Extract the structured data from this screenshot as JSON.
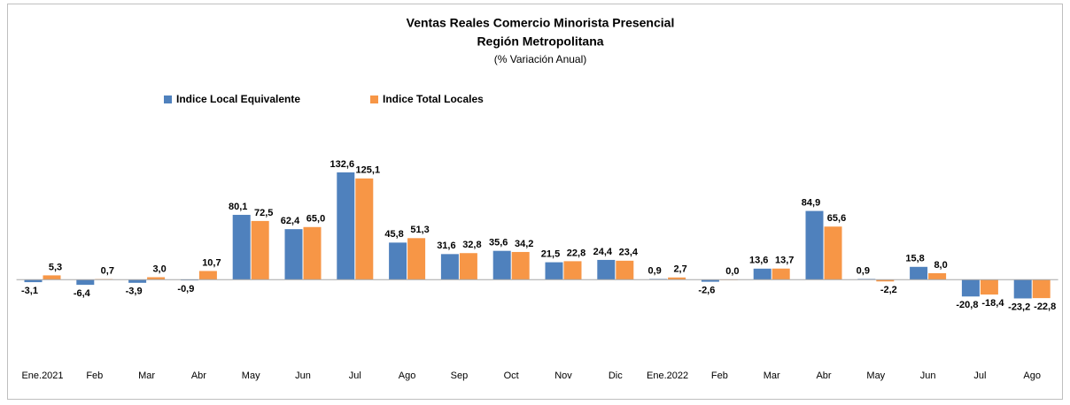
{
  "chart_data": {
    "type": "bar",
    "title": "Ventas Reales Comercio Minorista Presencial",
    "subtitle": "Región Metropolitana",
    "unit_label": "(% Variación Anual)",
    "categories": [
      "Ene.2021",
      "Feb",
      "Mar",
      "Abr",
      "May",
      "Jun",
      "Jul",
      "Ago",
      "Sep",
      "Oct",
      "Nov",
      "Dic",
      "Ene.2022",
      "Feb",
      "Mar",
      "Abr",
      "May",
      "Jun",
      "Jul",
      "Ago"
    ],
    "series": [
      {
        "name": "Indice Local Equivalente",
        "color": "#4f81bd",
        "label_color": "#1f3f6e",
        "values": [
          -3.1,
          -6.4,
          -3.9,
          -0.9,
          80.1,
          62.4,
          132.6,
          45.8,
          31.6,
          35.6,
          21.5,
          24.4,
          0.9,
          -2.6,
          13.6,
          84.9,
          0.9,
          15.8,
          -20.8,
          -23.2
        ],
        "value_labels": [
          "-3,1",
          "-6,4",
          "-3,9",
          "-0,9",
          "80,1",
          "62,4",
          "132,6",
          "45,8",
          "31,6",
          "35,6",
          "21,5",
          "24,4",
          "0,9",
          "-2,6",
          "13,6",
          "84,9",
          "0,9",
          "15,8",
          "-20,8",
          "-23,2"
        ]
      },
      {
        "name": "Indice Total Locales",
        "color": "#f79646",
        "label_color": "#b85a12",
        "values": [
          5.3,
          0.7,
          3.0,
          10.7,
          72.5,
          65.0,
          125.1,
          51.3,
          32.8,
          34.2,
          22.8,
          23.4,
          2.7,
          0.0,
          13.7,
          65.6,
          -2.2,
          8.0,
          -18.4,
          -22.8
        ],
        "value_labels": [
          "5,3",
          "0,7",
          "3,0",
          "10,7",
          "72,5",
          "65,0",
          "125,1",
          "51,3",
          "32,8",
          "34,2",
          "22,8",
          "23,4",
          "2,7",
          "0,0",
          "13,7",
          "65,6",
          "-2,2",
          "8,0",
          "-18,4",
          "-22,8"
        ]
      }
    ],
    "ylim": [
      -50,
      150
    ],
    "legend": "top-left",
    "grid": false
  }
}
